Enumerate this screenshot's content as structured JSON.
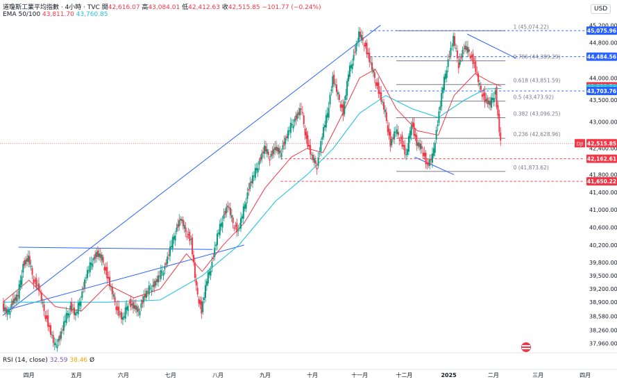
{
  "header": {
    "title": "道瓊斯工業平均指數 · 4小時 · TVC",
    "open_label": "開",
    "open_value": "42,616.07",
    "high_label": "高",
    "high_value": "43,084.01",
    "low_label": "低",
    "low_value": "42,412.63",
    "close_label": "收",
    "close_value": "42,515.85",
    "change": "−101.77 (−0.24%)",
    "ema_label": "EMA 50/100",
    "ema_fast_value": "43,811.70",
    "ema_slow_value": "43,760.85"
  },
  "rsi": {
    "label": "RSI (14, close)",
    "value": "32.59",
    "ma_value": "38.46",
    "extra": "Ø"
  },
  "currency": "USD",
  "chart_data": {
    "type": "candlestick",
    "symbol": "DJI",
    "ylim": [
      37750,
      45300
    ],
    "xlim": [
      0,
      100
    ],
    "y_ticks": [
      "45,200.00",
      "44,800.00",
      "44,000.00",
      "43,500.00",
      "43,000.00",
      "42,400.00",
      "41,800.00",
      "41,400.00",
      "41,000.00",
      "40,600.00",
      "40,200.00",
      "39,800.00",
      "39,500.00",
      "39,200.00",
      "38,900.00",
      "38,580.00",
      "38,260.00",
      "37,960.00"
    ],
    "y_tick_values": [
      45200,
      44800,
      44000,
      43500,
      43000,
      42400,
      41800,
      41400,
      41000,
      40600,
      40200,
      39800,
      39500,
      39200,
      38900,
      38580,
      38260,
      37960
    ],
    "x_ticks": [
      {
        "label": "四月",
        "x": 5
      },
      {
        "label": "五月",
        "x": 14
      },
      {
        "label": "六月",
        "x": 23
      },
      {
        "label": "七月",
        "x": 32
      },
      {
        "label": "八月",
        "x": 41
      },
      {
        "label": "九月",
        "x": 50
      },
      {
        "label": "十月",
        "x": 59
      },
      {
        "label": "十一月",
        "x": 68
      },
      {
        "label": "十二月",
        "x": 76.5
      },
      {
        "label": "2025",
        "x": 85
      },
      {
        "label": "二月",
        "x": 93.5
      },
      {
        "label": "三月",
        "x": 102
      },
      {
        "label": "四月",
        "x": 111
      }
    ],
    "price_tags": [
      {
        "label": "45,075.96",
        "value": 45075.96,
        "color": "#2962ff"
      },
      {
        "label": "44,484.56",
        "value": 44484.56,
        "color": "#2962ff"
      },
      {
        "label": "43,811.70",
        "value": 43811.7,
        "color": "#f23645"
      },
      {
        "label": "43,760.85",
        "value": 43760.85,
        "color": "#22c3dd"
      },
      {
        "label": "43,703.76",
        "value": 43703.76,
        "color": "#2962ff"
      },
      {
        "label": "42,515.85",
        "value": 42515.85,
        "color": "#f23645"
      },
      {
        "label": "42,162.61",
        "value": 42162.61,
        "color": "#f23645"
      },
      {
        "label": "41,650.22",
        "value": 41650.22,
        "color": "#f23645"
      }
    ],
    "symbol_tag": "DJI",
    "fib_levels": [
      {
        "label": "1 (45,074.22)",
        "value": 45074.22
      },
      {
        "label": "0.786 (44,389.29)",
        "value": 44389.29
      },
      {
        "label": "0.618 (43,851.59)",
        "value": 43851.59
      },
      {
        "label": "0.5 (43,473.92)",
        "value": 43473.92
      },
      {
        "label": "0.382 (43,096.25)",
        "value": 43096.25
      },
      {
        "label": "0.236 (42,628.96)",
        "value": 42628.96
      },
      {
        "label": "0 (41,873.62)",
        "value": 41873.62
      }
    ],
    "close_series": [
      [
        0,
        38800
      ],
      [
        1,
        38650
      ],
      [
        2,
        38900
      ],
      [
        3,
        39050
      ],
      [
        4,
        39750
      ],
      [
        5,
        39900
      ],
      [
        6,
        39400
      ],
      [
        7,
        39200
      ],
      [
        8,
        38700
      ],
      [
        9,
        38300
      ],
      [
        10,
        37900
      ],
      [
        11,
        38100
      ],
      [
        12,
        38500
      ],
      [
        13,
        38800
      ],
      [
        14,
        38600
      ],
      [
        15,
        39000
      ],
      [
        16,
        39500
      ],
      [
        17,
        39800
      ],
      [
        18,
        40000
      ],
      [
        19,
        39900
      ],
      [
        20,
        39500
      ],
      [
        21,
        39100
      ],
      [
        22,
        38700
      ],
      [
        23,
        38500
      ],
      [
        24,
        38900
      ],
      [
        25,
        38800
      ],
      [
        26,
        38700
      ],
      [
        27,
        39000
      ],
      [
        28,
        39200
      ],
      [
        29,
        39300
      ],
      [
        30,
        39500
      ],
      [
        31,
        39700
      ],
      [
        32,
        40100
      ],
      [
        33,
        40500
      ],
      [
        34,
        40800
      ],
      [
        35,
        40500
      ],
      [
        36,
        40300
      ],
      [
        37,
        39200
      ],
      [
        38,
        38700
      ],
      [
        39,
        39400
      ],
      [
        40,
        39800
      ],
      [
        41,
        40400
      ],
      [
        42,
        40800
      ],
      [
        43,
        41100
      ],
      [
        44,
        40700
      ],
      [
        45,
        40500
      ],
      [
        46,
        41000
      ],
      [
        47,
        41500
      ],
      [
        48,
        41800
      ],
      [
        49,
        42100
      ],
      [
        50,
        42400
      ],
      [
        51,
        42200
      ],
      [
        52,
        42400
      ],
      [
        53,
        42300
      ],
      [
        54,
        42600
      ],
      [
        55,
        42900
      ],
      [
        56,
        43100
      ],
      [
        57,
        43300
      ],
      [
        58,
        42600
      ],
      [
        59,
        42200
      ],
      [
        60,
        42000
      ],
      [
        61,
        42700
      ],
      [
        62,
        43200
      ],
      [
        63,
        44000
      ],
      [
        64,
        43600
      ],
      [
        65,
        43200
      ],
      [
        66,
        44100
      ],
      [
        67,
        44500
      ],
      [
        68,
        45000
      ],
      [
        69,
        44800
      ],
      [
        70,
        44400
      ],
      [
        71,
        44000
      ],
      [
        72,
        43600
      ],
      [
        73,
        43200
      ],
      [
        74,
        42500
      ],
      [
        75,
        42800
      ],
      [
        76,
        42600
      ],
      [
        77,
        42200
      ],
      [
        78,
        43000
      ],
      [
        79,
        42500
      ],
      [
        80,
        42400
      ],
      [
        81,
        42000
      ],
      [
        82,
        42200
      ],
      [
        83,
        43000
      ],
      [
        84,
        43800
      ],
      [
        85,
        44400
      ],
      [
        86,
        44900
      ],
      [
        87,
        44300
      ],
      [
        88,
        44700
      ],
      [
        89,
        44600
      ],
      [
        90,
        44300
      ],
      [
        91,
        43800
      ],
      [
        92,
        43500
      ],
      [
        93,
        43400
      ],
      [
        94,
        43700
      ],
      [
        95,
        42515.85
      ]
    ],
    "ema50_series": [
      [
        0,
        38900
      ],
      [
        5,
        39400
      ],
      [
        10,
        38800
      ],
      [
        15,
        38700
      ],
      [
        20,
        39300
      ],
      [
        25,
        39000
      ],
      [
        30,
        39200
      ],
      [
        35,
        40000
      ],
      [
        38,
        39600
      ],
      [
        42,
        40200
      ],
      [
        46,
        40700
      ],
      [
        50,
        41500
      ],
      [
        55,
        42200
      ],
      [
        58,
        42400
      ],
      [
        61,
        42300
      ],
      [
        64,
        43000
      ],
      [
        68,
        44000
      ],
      [
        71,
        44200
      ],
      [
        75,
        43300
      ],
      [
        79,
        42800
      ],
      [
        83,
        42700
      ],
      [
        86,
        43600
      ],
      [
        90,
        44100
      ],
      [
        93,
        43900
      ],
      [
        95,
        43811.7
      ]
    ],
    "ema100_series": [
      [
        0,
        38900
      ],
      [
        10,
        38900
      ],
      [
        20,
        38900
      ],
      [
        30,
        38950
      ],
      [
        38,
        39500
      ],
      [
        45,
        40200
      ],
      [
        52,
        41200
      ],
      [
        58,
        41800
      ],
      [
        63,
        42400
      ],
      [
        68,
        43200
      ],
      [
        73,
        43600
      ],
      [
        78,
        43300
      ],
      [
        83,
        43100
      ],
      [
        88,
        43500
      ],
      [
        92,
        43750
      ],
      [
        95,
        43760.85
      ]
    ]
  }
}
